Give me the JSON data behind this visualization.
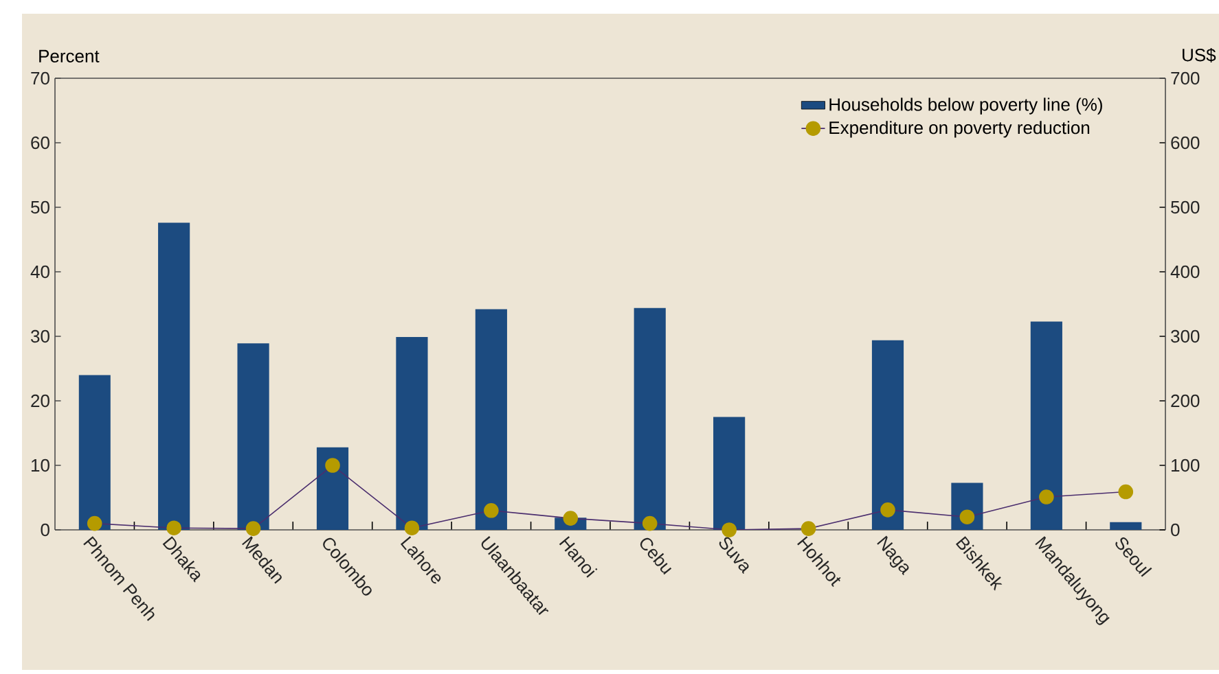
{
  "chart_data": {
    "type": "bar",
    "ylabel": "Percent",
    "y2label": "US$",
    "categories": [
      "Phnom Penh",
      "Dhaka",
      "Medan",
      "Colombo",
      "Lahore",
      "Ulaanbaatar",
      "Hanoi",
      "Cebu",
      "Suva",
      "Hohhot",
      "Naga",
      "Bishkek",
      "Mandaluyong",
      "Seoul"
    ],
    "series": [
      {
        "name": "Households below poverty line (%)",
        "color": "#1c4b80",
        "values": [
          24,
          47.6,
          28.9,
          12.8,
          29.9,
          34.2,
          1.9,
          34.4,
          17.5,
          0,
          29.4,
          7.3,
          32.3,
          1.2
        ]
      },
      {
        "name": "Expenditure on poverty reduction",
        "type": "line",
        "axis": "y2",
        "color": "#b59b00",
        "marker": "circle",
        "values": [
          10,
          3,
          2,
          100,
          3,
          30,
          18,
          10,
          0,
          2,
          31,
          20,
          51,
          59
        ]
      }
    ],
    "ylim": [
      0,
      70
    ],
    "yticks": [
      0,
      10,
      20,
      30,
      40,
      50,
      60,
      70
    ],
    "y2lim": [
      0,
      700
    ],
    "y2ticks": [
      0,
      100,
      200,
      300,
      400,
      500,
      600,
      700
    ],
    "legend": "top right",
    "grid": false
  }
}
